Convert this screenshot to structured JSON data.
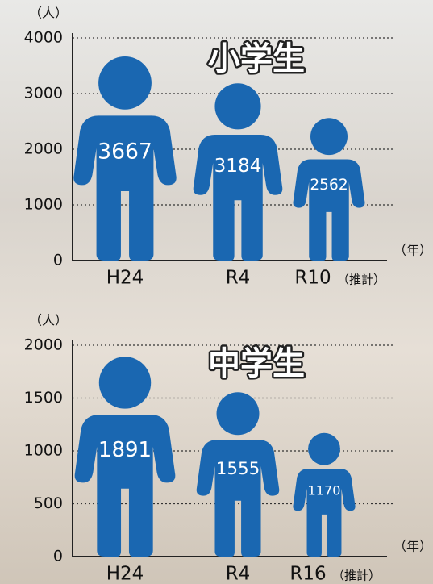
{
  "chart_data": [
    {
      "type": "pictograph",
      "title": "小学生",
      "y_label": "（人）",
      "x_unit": "（年）",
      "categories": [
        "H24",
        "R4",
        "R10"
      ],
      "category_notes": [
        null,
        null,
        "（推計）"
      ],
      "values": [
        3667,
        3184,
        2562
      ],
      "color": "#1a67b1",
      "ylim": [
        0,
        4000
      ],
      "yticks": [
        0,
        1000,
        2000,
        3000,
        4000
      ],
      "grid": true
    },
    {
      "type": "pictograph",
      "title": "中学生",
      "y_label": "（人）",
      "x_unit": "（年）",
      "categories": [
        "H24",
        "R4",
        "R16"
      ],
      "category_notes": [
        null,
        null,
        "（推計）"
      ],
      "values": [
        1891,
        1555,
        1170
      ],
      "color": "#1a67b1",
      "ylim": [
        0,
        2000
      ],
      "yticks": [
        0,
        500,
        1000,
        1500,
        2000
      ],
      "grid": true
    }
  ]
}
